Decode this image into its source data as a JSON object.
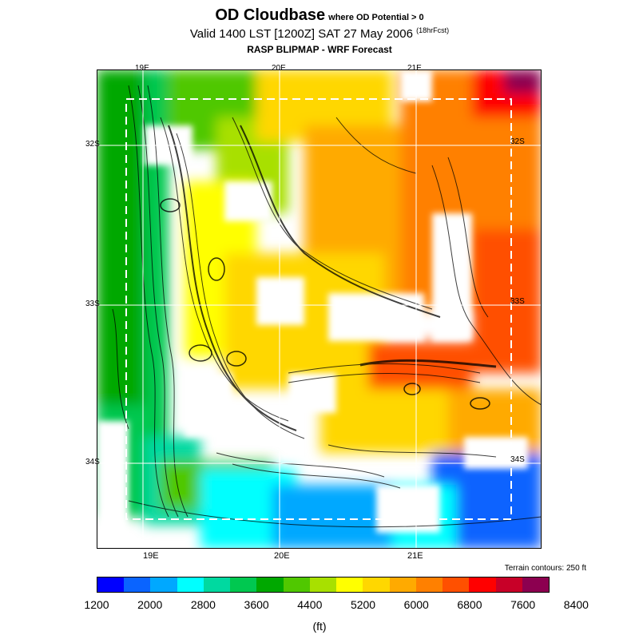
{
  "title": {
    "main": "OD Cloudbase",
    "sub": "where OD Potential > 0",
    "valid": "Valid 1400 LST [1200Z] SAT 27 May 2006",
    "forecast_hours": "(18hrFcst)",
    "model": "RASP BLIPMAP - WRF Forecast"
  },
  "map": {
    "lon_labels_top": [
      "19E",
      "20E",
      "21E"
    ],
    "lon_labels_bottom": [
      "19E",
      "20E",
      "21E"
    ],
    "lat_labels_left": [
      "32S",
      "33S",
      "34S"
    ],
    "lat_labels_right": [
      "32S",
      "33S",
      "34S"
    ],
    "terrain_note": "Terrain contours: 250 ft"
  },
  "colorbar": {
    "colors": [
      "#0000ff",
      "#0a64ff",
      "#00a8ff",
      "#00ffff",
      "#00d9a0",
      "#00c850",
      "#00a800",
      "#50c800",
      "#a8e000",
      "#ffff00",
      "#ffd700",
      "#ffaa00",
      "#ff8000",
      "#ff5000",
      "#ff0000",
      "#c80028",
      "#8c0050"
    ],
    "ticks": [
      "1200",
      "2000",
      "2800",
      "3600",
      "4400",
      "5200",
      "6000",
      "6800",
      "7600",
      "8400"
    ],
    "unit": "(ft)"
  }
}
